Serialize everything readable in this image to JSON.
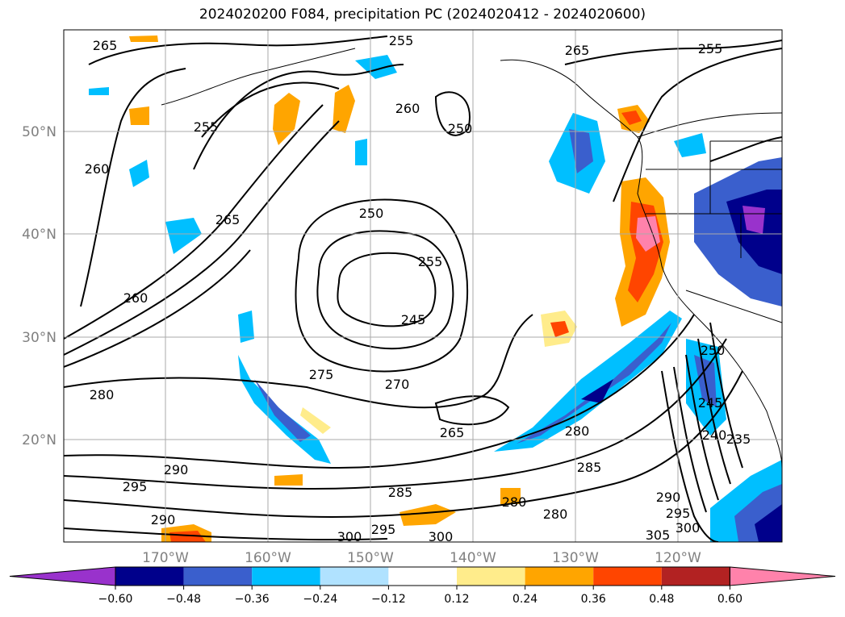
{
  "title": "2024020200 F084, precipitation PC (2024020412 - 2024020600)",
  "lat_labels": [
    "50°N",
    "40°N",
    "30°N",
    "20°N"
  ],
  "lon_labels": [
    "170°W",
    "160°W",
    "150°W",
    "140°W",
    "130°W",
    "120°W"
  ],
  "contour_labels": [
    "265",
    "255",
    "255",
    "260",
    "250",
    "260",
    "265",
    "250",
    "255",
    "260",
    "245",
    "275",
    "270",
    "265",
    "280",
    "280",
    "290",
    "295",
    "290",
    "285",
    "280",
    "280",
    "285",
    "290",
    "295",
    "300",
    "300",
    "305",
    "295",
    "300",
    "255",
    "265",
    "250",
    "245",
    "240",
    "235"
  ],
  "colorbar": {
    "ticks": [
      "−0.60",
      "−0.48",
      "−0.36",
      "−0.24",
      "−0.12",
      "0.12",
      "0.24",
      "0.36",
      "0.48",
      "0.60"
    ],
    "colors": [
      "#9932cc",
      "#00008b",
      "#3a5fcd",
      "#00bfff",
      "#b0e2ff",
      "#ffffff",
      "#ffec8b",
      "#ffa500",
      "#ff4500",
      "#b22222",
      "#ff82ab"
    ]
  }
}
